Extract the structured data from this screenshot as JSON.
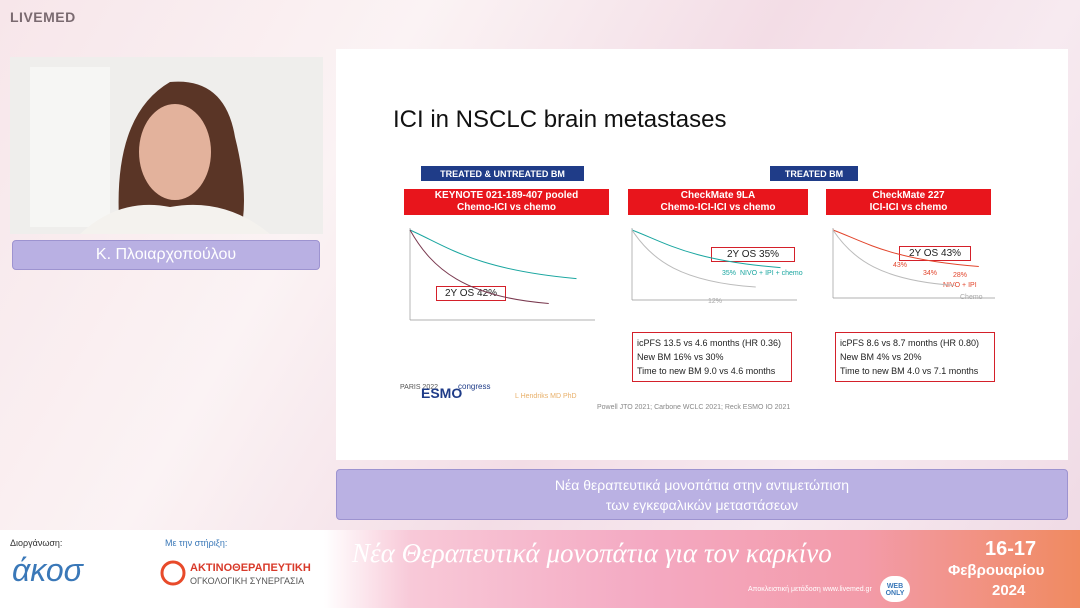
{
  "header": {
    "logo": "LIVEMED"
  },
  "speaker": {
    "name": "Κ. Πλοιαρχοπούλου"
  },
  "slide": {
    "title": "ICI in NSCLC brain metastases",
    "groups": [
      "TREATED & UNTREATED BM",
      "TREATED BM"
    ],
    "panels": [
      {
        "title": [
          "KEYNOTE 021-189-407 pooled",
          "Chemo-ICI vs chemo"
        ],
        "callout": "2Y OS 42%",
        "labels": [],
        "notes": []
      },
      {
        "title": [
          "CheckMate 9LA",
          "Chemo-ICI-ICI vs chemo"
        ],
        "callout": "2Y OS 35%",
        "labels": [
          "35%",
          "NIVO + IPI + chemo",
          "12%"
        ],
        "notes": [
          "icPFS 13.5 vs 4.6 months (HR 0.36)",
          "New BM 16% vs 30%",
          "Time to new BM 9.0 vs 4.6 months"
        ]
      },
      {
        "title": [
          "CheckMate 227",
          "ICI-ICI vs chemo"
        ],
        "callout": "2Y OS 43%",
        "labels": [
          "43%",
          "34%",
          "28%",
          "NIVO + IPI",
          "Chemo"
        ],
        "notes": [
          "icPFS 8.6 vs 8.7 months (HR 0.80)",
          "New BM 4% vs 20%",
          "Time to new BM 4.0 vs 7.1 months"
        ]
      }
    ],
    "congress": {
      "city": "PARIS 2022",
      "brand": "ESMO",
      "word": "congress"
    },
    "author": "L Hendriks MD PhD",
    "references": "Powell JTO 2021; Carbone WCLC 2021; Reck ESMO IO 2021"
  },
  "caption": [
    "Νέα θεραπευτικά μονοπάτια στην αντιμετώπιση",
    "των εγκεφαλικών μεταστάσεων"
  ],
  "footer": {
    "organizer_label": "Διοργάνωση:",
    "organizer": "άκοσ",
    "support_label": "Με την στήριξη:",
    "support": [
      "ΑΚΤΙΝΟΘΕΡΑΠΕΥΤΙΚΗ",
      "ΟΓΚΟΛΟΓΙΚΗ ΣΥΝΕΡΓΑΣΙΑ"
    ],
    "banner": "Νέα Θεραπευτικά μονοπάτια για τον καρκίνο",
    "broadcast": "Αποκλειστική μετάδοση www.livemed.gr",
    "web": "WEB ONLY",
    "date": [
      "16-17",
      "Φεβρουαρίου",
      "2024"
    ]
  }
}
